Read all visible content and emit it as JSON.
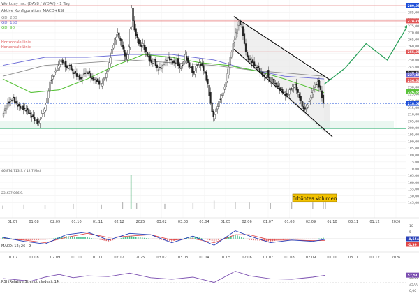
{
  "header": {
    "title": "Workday Inc. (DAY8 / WDAY) - 1 Tag",
    "config": "Aktive Konfiguration: MACD+RSI",
    "legend": [
      {
        "label": "GD: 200",
        "color": "#8a8a8a"
      },
      {
        "label": "GD: 150",
        "color": "#6b6bd6"
      },
      {
        "label": "GD: 90",
        "color": "#59c23a"
      }
    ]
  },
  "colors": {
    "up": "#1a1a1a",
    "down": "#555555",
    "resistance": "#e05555",
    "support": "#2fae6f",
    "channel": "#111111",
    "dashed": "#1e4fd8",
    "macd": "#2840b8",
    "signal": "#e04444",
    "rsi": "#7b4fb0"
  },
  "chart_data": [
    {
      "type": "candlestick",
      "ylim": [
        140,
        290
      ],
      "x_ticks": [
        "01.07",
        "01.08",
        "02.09",
        "01.10",
        "01.11",
        "02.12",
        "2025",
        "03.02",
        "03.03",
        "01.04",
        "01.05",
        "02.06",
        "01.07",
        "01.08",
        "02.09",
        "01.10",
        "03.11",
        "01.12",
        "2026"
      ],
      "y_ticks": [
        145,
        150,
        155,
        160,
        165,
        170,
        175,
        180,
        185,
        190,
        195,
        200,
        205,
        210,
        215,
        220,
        225,
        230,
        235,
        240,
        245,
        250,
        255,
        260,
        265,
        270,
        275,
        280,
        285,
        290
      ],
      "annotations": [
        "Horizontale Linie",
        "Horizontale Linie",
        "Erhöhtes Volumen"
      ],
      "volume_labels": [
        "46.874.713 S. / 12,7 Mrd.",
        "23.437.066 S."
      ],
      "price_tags": [
        {
          "value": "289,95",
          "color": "#1e4fd8"
        },
        {
          "value": "278,74",
          "color": "#e05555"
        },
        {
          "value": "255,95",
          "color": "#e05555"
        },
        {
          "value": "240,48",
          "color": "#222222"
        },
        {
          "value": "236,54",
          "color": "#e05555"
        },
        {
          "value": "237,45",
          "color": "#6b6bd6"
        },
        {
          "value": "226,55",
          "color": "#59c23a"
        },
        {
          "value": "218,01",
          "color": "#1e4fd8"
        }
      ],
      "horizontal_levels": [
        {
          "value": 289.95,
          "kind": "resistance"
        },
        {
          "value": 278.74,
          "kind": "resistance"
        },
        {
          "value": 255.95,
          "kind": "resistance"
        },
        {
          "value": 218.01,
          "kind": "dashed"
        },
        {
          "value": 205,
          "kind": "support"
        },
        {
          "value": 199.5,
          "kind": "support"
        }
      ],
      "price_path": [
        [
          0,
          210
        ],
        [
          4,
          214
        ],
        [
          8,
          218
        ],
        [
          12,
          221
        ],
        [
          16,
          222
        ],
        [
          20,
          218
        ],
        [
          24,
          216
        ],
        [
          28,
          215
        ],
        [
          32,
          214
        ],
        [
          36,
          213
        ],
        [
          40,
          210
        ],
        [
          44,
          208
        ],
        [
          48,
          205
        ],
        [
          52,
          204
        ],
        [
          56,
          210
        ],
        [
          60,
          214
        ],
        [
          64,
          222
        ],
        [
          68,
          234
        ],
        [
          72,
          238
        ],
        [
          76,
          242
        ],
        [
          80,
          246
        ],
        [
          84,
          250
        ],
        [
          88,
          248
        ],
        [
          92,
          244
        ],
        [
          96,
          246
        ],
        [
          100,
          242
        ],
        [
          104,
          240
        ],
        [
          108,
          238
        ],
        [
          112,
          236
        ],
        [
          116,
          240
        ],
        [
          120,
          242
        ],
        [
          124,
          240
        ],
        [
          128,
          236
        ],
        [
          132,
          236
        ],
        [
          136,
          234
        ],
        [
          140,
          232
        ],
        [
          144,
          236
        ],
        [
          148,
          240
        ],
        [
          152,
          248
        ],
        [
          156,
          258
        ],
        [
          160,
          266
        ],
        [
          164,
          270
        ],
        [
          168,
          264
        ],
        [
          172,
          258
        ],
        [
          176,
          250
        ],
        [
          180,
          260
        ],
        [
          184,
          288
        ],
        [
          188,
          272
        ],
        [
          192,
          266
        ],
        [
          196,
          260
        ],
        [
          200,
          262
        ],
        [
          204,
          256
        ],
        [
          208,
          252
        ],
        [
          212,
          248
        ],
        [
          216,
          250
        ],
        [
          220,
          244
        ],
        [
          224,
          244
        ],
        [
          228,
          246
        ],
        [
          232,
          250
        ],
        [
          236,
          252
        ],
        [
          240,
          250
        ],
        [
          244,
          248
        ],
        [
          248,
          250
        ],
        [
          252,
          244
        ],
        [
          256,
          246
        ],
        [
          260,
          254
        ],
        [
          264,
          248
        ],
        [
          268,
          244
        ],
        [
          272,
          240
        ],
        [
          276,
          246
        ],
        [
          280,
          248
        ],
        [
          284,
          246
        ],
        [
          288,
          240
        ],
        [
          292,
          232
        ],
        [
          296,
          218
        ],
        [
          300,
          208
        ],
        [
          304,
          214
        ],
        [
          308,
          220
        ],
        [
          312,
          224
        ],
        [
          316,
          230
        ],
        [
          320,
          240
        ],
        [
          324,
          252
        ],
        [
          328,
          262
        ],
        [
          332,
          270
        ],
        [
          336,
          278
        ],
        [
          340,
          276
        ],
        [
          344,
          262
        ],
        [
          348,
          252
        ],
        [
          352,
          250
        ],
        [
          356,
          248
        ],
        [
          360,
          246
        ],
        [
          364,
          244
        ],
        [
          368,
          240
        ],
        [
          372,
          238
        ],
        [
          376,
          242
        ],
        [
          380,
          234
        ],
        [
          384,
          236
        ],
        [
          388,
          232
        ],
        [
          392,
          230
        ],
        [
          396,
          228
        ],
        [
          400,
          226
        ],
        [
          404,
          224
        ],
        [
          408,
          228
        ],
        [
          412,
          230
        ],
        [
          416,
          232
        ],
        [
          420,
          226
        ],
        [
          424,
          220
        ],
        [
          428,
          214
        ],
        [
          432,
          216
        ],
        [
          436,
          220
        ],
        [
          440,
          226
        ],
        [
          444,
          232
        ],
        [
          448,
          234
        ],
        [
          452,
          228
        ],
        [
          456,
          218
        ]
      ],
      "ma_200": [
        [
          0,
          238
        ],
        [
          60,
          246
        ],
        [
          120,
          248
        ],
        [
          180,
          250
        ],
        [
          240,
          248
        ],
        [
          300,
          246
        ],
        [
          360,
          242
        ],
        [
          410,
          240
        ],
        [
          456,
          238
        ]
      ],
      "ma_150": [
        [
          0,
          246
        ],
        [
          60,
          252
        ],
        [
          120,
          252
        ],
        [
          180,
          254
        ],
        [
          240,
          254
        ],
        [
          300,
          250
        ],
        [
          340,
          244
        ],
        [
          400,
          238
        ],
        [
          456,
          236
        ]
      ],
      "ma_90": [
        [
          0,
          236
        ],
        [
          40,
          226
        ],
        [
          80,
          228
        ],
        [
          120,
          236
        ],
        [
          160,
          246
        ],
        [
          200,
          254
        ],
        [
          240,
          252
        ],
        [
          280,
          248
        ],
        [
          320,
          246
        ],
        [
          360,
          242
        ],
        [
          400,
          236
        ],
        [
          456,
          226
        ]
      ],
      "forecast": [
        [
          456,
          232
        ],
        [
          476,
          244
        ],
        [
          496,
          262
        ],
        [
          516,
          250
        ],
        [
          536,
          276
        ]
      ],
      "volume": [
        [
          0,
          6
        ],
        [
          30,
          8
        ],
        [
          60,
          7
        ],
        [
          100,
          9
        ],
        [
          140,
          8
        ],
        [
          170,
          12
        ],
        [
          182,
          55
        ],
        [
          190,
          10
        ],
        [
          230,
          9
        ],
        [
          270,
          10
        ],
        [
          300,
          14
        ],
        [
          330,
          12
        ],
        [
          350,
          11
        ],
        [
          380,
          10
        ],
        [
          410,
          12
        ],
        [
          440,
          11
        ],
        [
          455,
          16
        ],
        [
          458,
          24
        ]
      ]
    },
    {
      "type": "line",
      "name_label": "MACD: 12; 26 | 9",
      "ylim": [
        -8,
        10
      ],
      "value_tags": [
        {
          "value": "-0,554",
          "color": "#2840b8"
        },
        {
          "value": "-1,39",
          "color": "#e04444"
        }
      ],
      "y_ticks": [
        10,
        5,
        0,
        -5
      ],
      "macd": [
        [
          0,
          1
        ],
        [
          30,
          -2
        ],
        [
          60,
          -4
        ],
        [
          90,
          3
        ],
        [
          120,
          5
        ],
        [
          150,
          -1
        ],
        [
          180,
          4
        ],
        [
          210,
          3
        ],
        [
          240,
          -3
        ],
        [
          270,
          2
        ],
        [
          300,
          -5
        ],
        [
          330,
          6
        ],
        [
          350,
          2
        ],
        [
          380,
          -3
        ],
        [
          410,
          -1
        ],
        [
          440,
          -2
        ],
        [
          458,
          -0.5
        ]
      ],
      "signal": [
        [
          0,
          0
        ],
        [
          30,
          -1
        ],
        [
          60,
          -3
        ],
        [
          90,
          1
        ],
        [
          120,
          4
        ],
        [
          150,
          1
        ],
        [
          180,
          2
        ],
        [
          210,
          3
        ],
        [
          240,
          -1
        ],
        [
          270,
          0
        ],
        [
          300,
          -3
        ],
        [
          330,
          3
        ],
        [
          350,
          3
        ],
        [
          380,
          -1
        ],
        [
          410,
          -1
        ],
        [
          440,
          -1.5
        ],
        [
          458,
          -1.4
        ]
      ]
    },
    {
      "type": "line",
      "name_label": "RSI (Relative Strength Index): 14",
      "ylim": [
        0,
        100
      ],
      "value_tags": [
        {
          "value": "57,51",
          "color": "#7b4fb0"
        }
      ],
      "y_ticks": [
        50,
        25,
        0
      ],
      "rsi": [
        [
          0,
          45
        ],
        [
          20,
          40
        ],
        [
          40,
          35
        ],
        [
          60,
          50
        ],
        [
          80,
          60
        ],
        [
          100,
          48
        ],
        [
          120,
          55
        ],
        [
          150,
          52
        ],
        [
          180,
          65
        ],
        [
          210,
          48
        ],
        [
          240,
          42
        ],
        [
          270,
          50
        ],
        [
          300,
          30
        ],
        [
          330,
          72
        ],
        [
          350,
          55
        ],
        [
          380,
          44
        ],
        [
          410,
          42
        ],
        [
          440,
          50
        ],
        [
          458,
          57
        ]
      ]
    }
  ]
}
